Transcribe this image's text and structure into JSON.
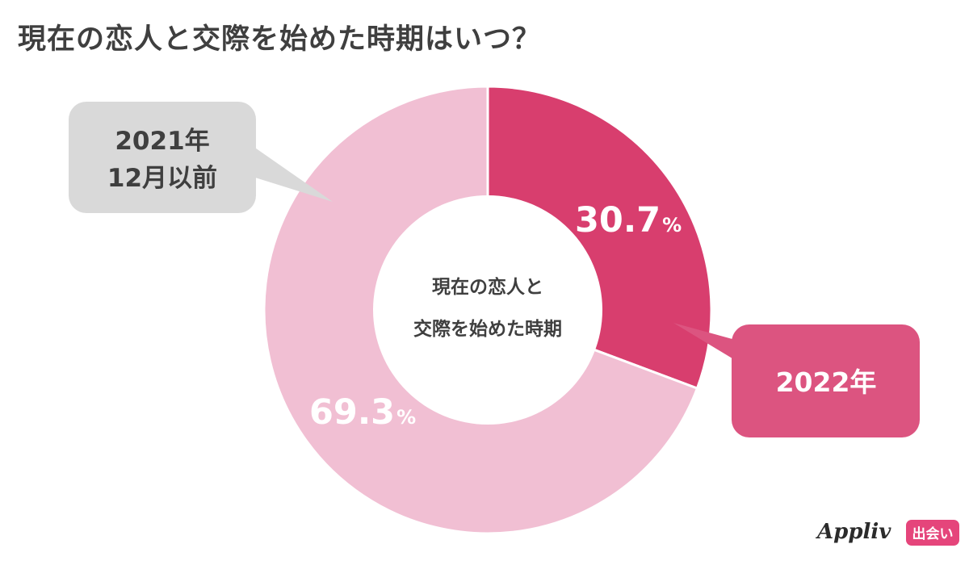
{
  "title": "現在の恋人と交際を始めた時期はいつ？",
  "center_label": [
    "現在の恋人と",
    "交際を始めた時期"
  ],
  "colors": {
    "slice_2022": "#d83e6e",
    "slice_before": "#f1bfd3",
    "callout_2022": "#dc5480",
    "callout_before": "#d9d9d9",
    "title": "#3f3f3f"
  },
  "chart_data": {
    "type": "pie",
    "title": "現在の恋人と交際を始めた時期はいつ？",
    "donut": true,
    "slices": [
      {
        "label": "2022年",
        "value": 30.7,
        "value_text": "30.7",
        "unit": "%",
        "color": "#d83e6e"
      },
      {
        "label": "2021年12月以前",
        "label_lines": [
          "2021年",
          "12月以前"
        ],
        "value": 69.3,
        "value_text": "69.3",
        "unit": "%",
        "color": "#f1bfd3"
      }
    ]
  },
  "logo": {
    "brand": "Appliv",
    "badge": "出会い"
  }
}
